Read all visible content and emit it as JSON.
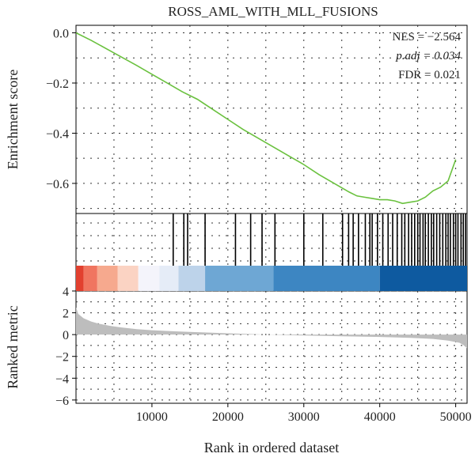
{
  "chart_data": {
    "type": "line",
    "title": "ROSS_AML_WITH_MLL_FUSIONS",
    "xlabel": "Rank in ordered dataset",
    "xlim": [
      0,
      51500
    ],
    "x_ticks": [
      10000,
      20000,
      30000,
      40000,
      50000
    ],
    "x_tick_labels": [
      "10000",
      "20000",
      "30000",
      "40000",
      "50000"
    ],
    "grid": "dotted",
    "stats": {
      "nes": "NES = −2.564",
      "padj": "p.adj = 0.034",
      "fdr": "FDR = 0.021"
    },
    "panels": {
      "enrichment": {
        "ylabel": "Enrichment score",
        "ylim": [
          -0.72,
          0.03
        ],
        "y_ticks": [
          0.0,
          -0.2,
          -0.4,
          -0.6
        ],
        "y_tick_labels": [
          "0.0",
          "−0.2",
          "−0.4",
          "−0.6"
        ],
        "color": "#6ac13e",
        "series": [
          {
            "x": [
              0,
              2000,
              5000,
              8000,
              10000,
              12000,
              14000,
              16000,
              18000,
              20000,
              22000,
              24000,
              26000,
              28000,
              30000,
              32000,
              34000,
              36000,
              37000,
              38000,
              39000,
              40000,
              41000,
              42000,
              43000,
              44000,
              45000,
              46000,
              47000,
              48000,
              49000,
              50000
            ],
            "y": [
              0.0,
              -0.03,
              -0.08,
              -0.13,
              -0.165,
              -0.2,
              -0.235,
              -0.265,
              -0.305,
              -0.345,
              -0.385,
              -0.42,
              -0.455,
              -0.49,
              -0.525,
              -0.565,
              -0.6,
              -0.635,
              -0.65,
              -0.655,
              -0.66,
              -0.665,
              -0.665,
              -0.67,
              -0.68,
              -0.675,
              -0.67,
              -0.655,
              -0.63,
              -0.615,
              -0.59,
              -0.505
            ]
          }
        ]
      },
      "hits": {
        "positions": [
          12800,
          14200,
          14700,
          17000,
          21000,
          23000,
          24500,
          26200,
          30000,
          32500,
          35100,
          35900,
          36500,
          37200,
          38100,
          38700,
          39000,
          39700,
          40400,
          41100,
          41700,
          42300,
          42900,
          43300,
          43800,
          44200,
          44600,
          45000,
          45300,
          45700,
          46000,
          46400,
          46800,
          47100,
          47500,
          47900,
          48300,
          48700,
          49000,
          49300,
          49700,
          50000,
          50300,
          50700,
          51000,
          51300
        ],
        "color_bands": [
          {
            "from": 0,
            "to": 1000,
            "color": "#e2402f"
          },
          {
            "from": 1000,
            "to": 2800,
            "color": "#f07560"
          },
          {
            "from": 2800,
            "to": 5500,
            "color": "#f6a98e"
          },
          {
            "from": 5500,
            "to": 8200,
            "color": "#fbd3c3"
          },
          {
            "from": 8200,
            "to": 11000,
            "color": "#f4f4fb"
          },
          {
            "from": 11000,
            "to": 13500,
            "color": "#e5ecf7"
          },
          {
            "from": 13500,
            "to": 17000,
            "color": "#bdd3ea"
          },
          {
            "from": 17000,
            "to": 26000,
            "color": "#6ea7d4"
          },
          {
            "from": 26000,
            "to": 40000,
            "color": "#3d86c2"
          },
          {
            "from": 40000,
            "to": 51500,
            "color": "#0e5aa0"
          }
        ]
      },
      "ranked": {
        "ylabel": "Ranked metric",
        "ylim": [
          -6.3,
          4
        ],
        "y_ticks": [
          4,
          2,
          0,
          -2,
          -4,
          -6
        ],
        "y_tick_labels": [
          "4",
          "2",
          "0",
          "−2",
          "−4",
          "−6"
        ],
        "fill": "#bdbdbd",
        "series": [
          {
            "x": [
              0,
              300,
              1000,
              2000,
              3000,
              4500,
              6000,
              8000,
              10000,
              13000,
              16000,
              20000,
              25000,
              30000,
              35000,
              40000,
              44000,
              47000,
              49000,
              50500,
              51000,
              51500
            ],
            "y": [
              2.5,
              1.9,
              1.5,
              1.2,
              1.0,
              0.8,
              0.65,
              0.5,
              0.4,
              0.3,
              0.22,
              0.12,
              0.0,
              -0.08,
              -0.15,
              -0.22,
              -0.3,
              -0.4,
              -0.55,
              -0.75,
              -0.95,
              -1.25
            ]
          }
        ]
      }
    }
  }
}
